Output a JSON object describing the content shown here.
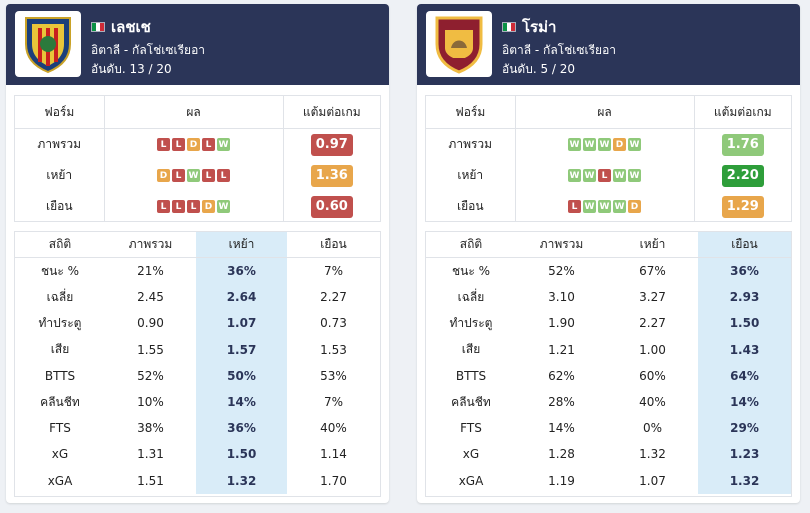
{
  "colors": {
    "header": "#2b3558",
    "loss": "#c0504d",
    "win": "#8fc97a",
    "draw": "#e8a64b",
    "highlight": "#d9ecf8"
  },
  "teams": [
    {
      "name": "เลชเช",
      "flag_icon": "italy-flag-icon",
      "crest_icon": "lecce-crest-icon",
      "league": "อิตาลี - กัลโช่เซเรียอา",
      "rank": "อันดับ. 13 / 20",
      "form_headers": [
        "ฟอร์ม",
        "ผล",
        "แต้มต่อเกม"
      ],
      "form": [
        {
          "label": "ภาพรวม",
          "results": [
            "L",
            "L",
            "D",
            "L",
            "W"
          ],
          "ppg": "0.97",
          "ppg_color": "#c0504d"
        },
        {
          "label": "เหย้า",
          "results": [
            "D",
            "L",
            "W",
            "L",
            "L"
          ],
          "ppg": "1.36",
          "ppg_color": "#e8a64b"
        },
        {
          "label": "เยือน",
          "results": [
            "L",
            "L",
            "L",
            "D",
            "W"
          ],
          "ppg": "0.60",
          "ppg_color": "#c0504d"
        }
      ],
      "stats_headers": [
        "สถิติ",
        "ภาพรวม",
        "เหย้า",
        "เยือน"
      ],
      "highlight_col": 2,
      "stats": [
        [
          "ชนะ %",
          "21%",
          "36%",
          "7%"
        ],
        [
          "เฉลี่ย",
          "2.45",
          "2.64",
          "2.27"
        ],
        [
          "ทำประตู",
          "0.90",
          "1.07",
          "0.73"
        ],
        [
          "เสีย",
          "1.55",
          "1.57",
          "1.53"
        ],
        [
          "BTTS",
          "52%",
          "50%",
          "53%"
        ],
        [
          "คลีนชีท",
          "10%",
          "14%",
          "7%"
        ],
        [
          "FTS",
          "38%",
          "36%",
          "40%"
        ],
        [
          "xG",
          "1.31",
          "1.50",
          "1.14"
        ],
        [
          "xGA",
          "1.51",
          "1.32",
          "1.70"
        ]
      ]
    },
    {
      "name": "โรม่า",
      "flag_icon": "italy-flag-icon",
      "crest_icon": "roma-crest-icon",
      "league": "อิตาลี - กัลโช่เซเรียอา",
      "rank": "อันดับ. 5 / 20",
      "form_headers": [
        "ฟอร์ม",
        "ผล",
        "แต้มต่อเกม"
      ],
      "form": [
        {
          "label": "ภาพรวม",
          "results": [
            "W",
            "W",
            "W",
            "D",
            "W"
          ],
          "ppg": "1.76",
          "ppg_color": "#8fc97a"
        },
        {
          "label": "เหย้า",
          "results": [
            "W",
            "W",
            "L",
            "W",
            "W"
          ],
          "ppg": "2.20",
          "ppg_color": "#2e9e3a"
        },
        {
          "label": "เยือน",
          "results": [
            "L",
            "W",
            "W",
            "W",
            "D"
          ],
          "ppg": "1.29",
          "ppg_color": "#e8a64b"
        }
      ],
      "stats_headers": [
        "สถิติ",
        "ภาพรวม",
        "เหย้า",
        "เยือน"
      ],
      "highlight_col": 3,
      "stats": [
        [
          "ชนะ %",
          "52%",
          "67%",
          "36%"
        ],
        [
          "เฉลี่ย",
          "3.10",
          "3.27",
          "2.93"
        ],
        [
          "ทำประตู",
          "1.90",
          "2.27",
          "1.50"
        ],
        [
          "เสีย",
          "1.21",
          "1.00",
          "1.43"
        ],
        [
          "BTTS",
          "62%",
          "60%",
          "64%"
        ],
        [
          "คลีนชีท",
          "28%",
          "40%",
          "14%"
        ],
        [
          "FTS",
          "14%",
          "0%",
          "29%"
        ],
        [
          "xG",
          "1.28",
          "1.32",
          "1.23"
        ],
        [
          "xGA",
          "1.19",
          "1.07",
          "1.32"
        ]
      ]
    }
  ]
}
